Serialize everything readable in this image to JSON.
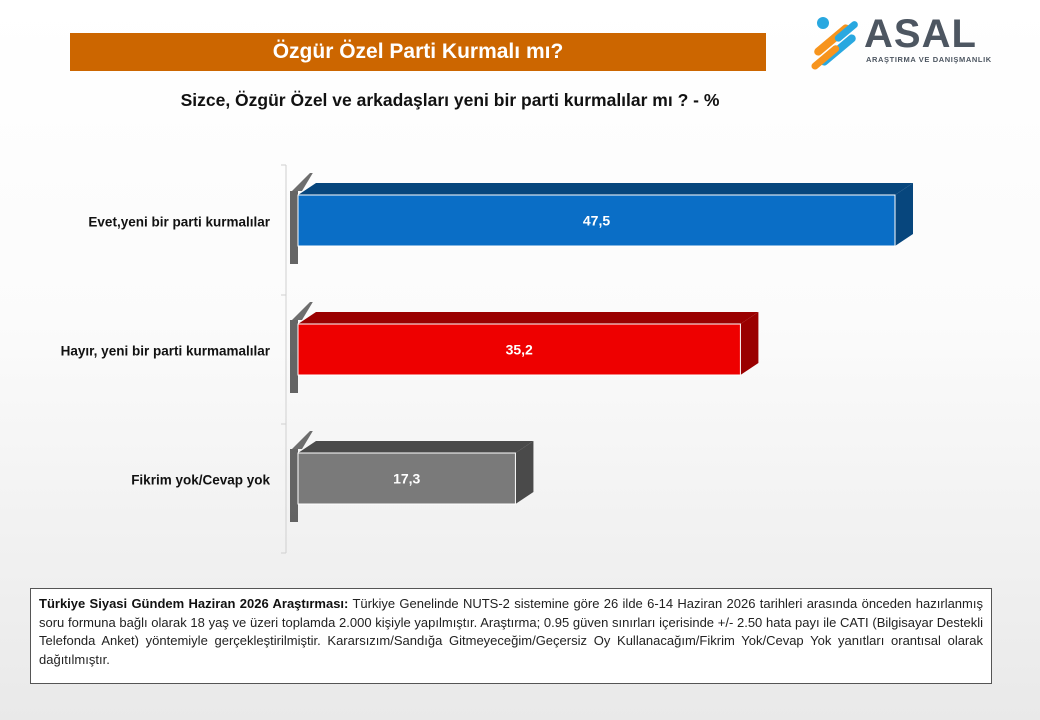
{
  "header": {
    "title": "Özgür Özel Parti Kurmalı mı?",
    "subtitle": "Sizce, Özgür Özel ve arkadaşları yeni bir parti kurmalılar mı ? - %"
  },
  "logo": {
    "name": "ASAL",
    "tagline": "ARAŞTIRMA VE DANIŞMANLIK"
  },
  "chart_data": {
    "type": "bar",
    "orientation": "horizontal",
    "categories": [
      "Evet,yeni bir parti kurmalılar",
      "Hayır, yeni bir parti kurmamalılar",
      "Fikrim yok/Cevap yok"
    ],
    "values": [
      47.5,
      35.2,
      17.3
    ],
    "labels": [
      "47,5",
      "35,2",
      "17,3"
    ],
    "colors": [
      "#0a6ec6",
      "#ee0000",
      "#7a7a7a"
    ],
    "side_colors": [
      "#07467d",
      "#9a0000",
      "#4a4a4a"
    ],
    "xlim": [
      0,
      50
    ],
    "grid": false,
    "legend": "none",
    "title": "",
    "xlabel": "",
    "ylabel": ""
  },
  "note": {
    "bold": "Türkiye Siyasi Gündem Haziran 2026 Araştırması:",
    "text": "Türkiye Genelinde NUTS-2 sistemine göre 26 ilde 6-14 Haziran 2026 tarihleri arasında önceden hazırlanmış soru formuna bağlı olarak 18 yaş ve üzeri toplamda 2.000 kişiyle yapılmıştır. Araştırma; 0.95 güven sınırları içerisinde +/- 2.50 hata payı ile CATI (Bilgisayar Destekli Telefonda Anket) yöntemiyle gerçekleştirilmiştir. Kararsızım/Sandığa Gitmeyeceğim/Geçersiz Oy Kullanacağım/Fikrim Yok/Cevap Yok yanıtları orantısal olarak dağıtılmıştır."
  }
}
